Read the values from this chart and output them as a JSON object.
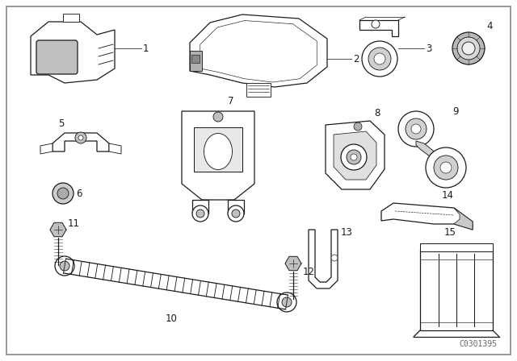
{
  "background_color": "#ffffff",
  "border_color": "#aaaaaa",
  "part_number_text": "C0301395",
  "line_color": "#1a1a1a",
  "text_color": "#000000",
  "font_size_label": 8.5,
  "font_size_partnum": 7,
  "parts": [
    {
      "id": 1,
      "label": "1"
    },
    {
      "id": 2,
      "label": "2"
    },
    {
      "id": 3,
      "label": "3"
    },
    {
      "id": 4,
      "label": "4"
    },
    {
      "id": 5,
      "label": "5"
    },
    {
      "id": 6,
      "label": "6"
    },
    {
      "id": 7,
      "label": "7"
    },
    {
      "id": 8,
      "label": "8"
    },
    {
      "id": 9,
      "label": "9"
    },
    {
      "id": 10,
      "label": "10"
    },
    {
      "id": 11,
      "label": "11"
    },
    {
      "id": 12,
      "label": "12"
    },
    {
      "id": 13,
      "label": "13"
    },
    {
      "id": 14,
      "label": "14"
    },
    {
      "id": 15,
      "label": "15"
    }
  ]
}
